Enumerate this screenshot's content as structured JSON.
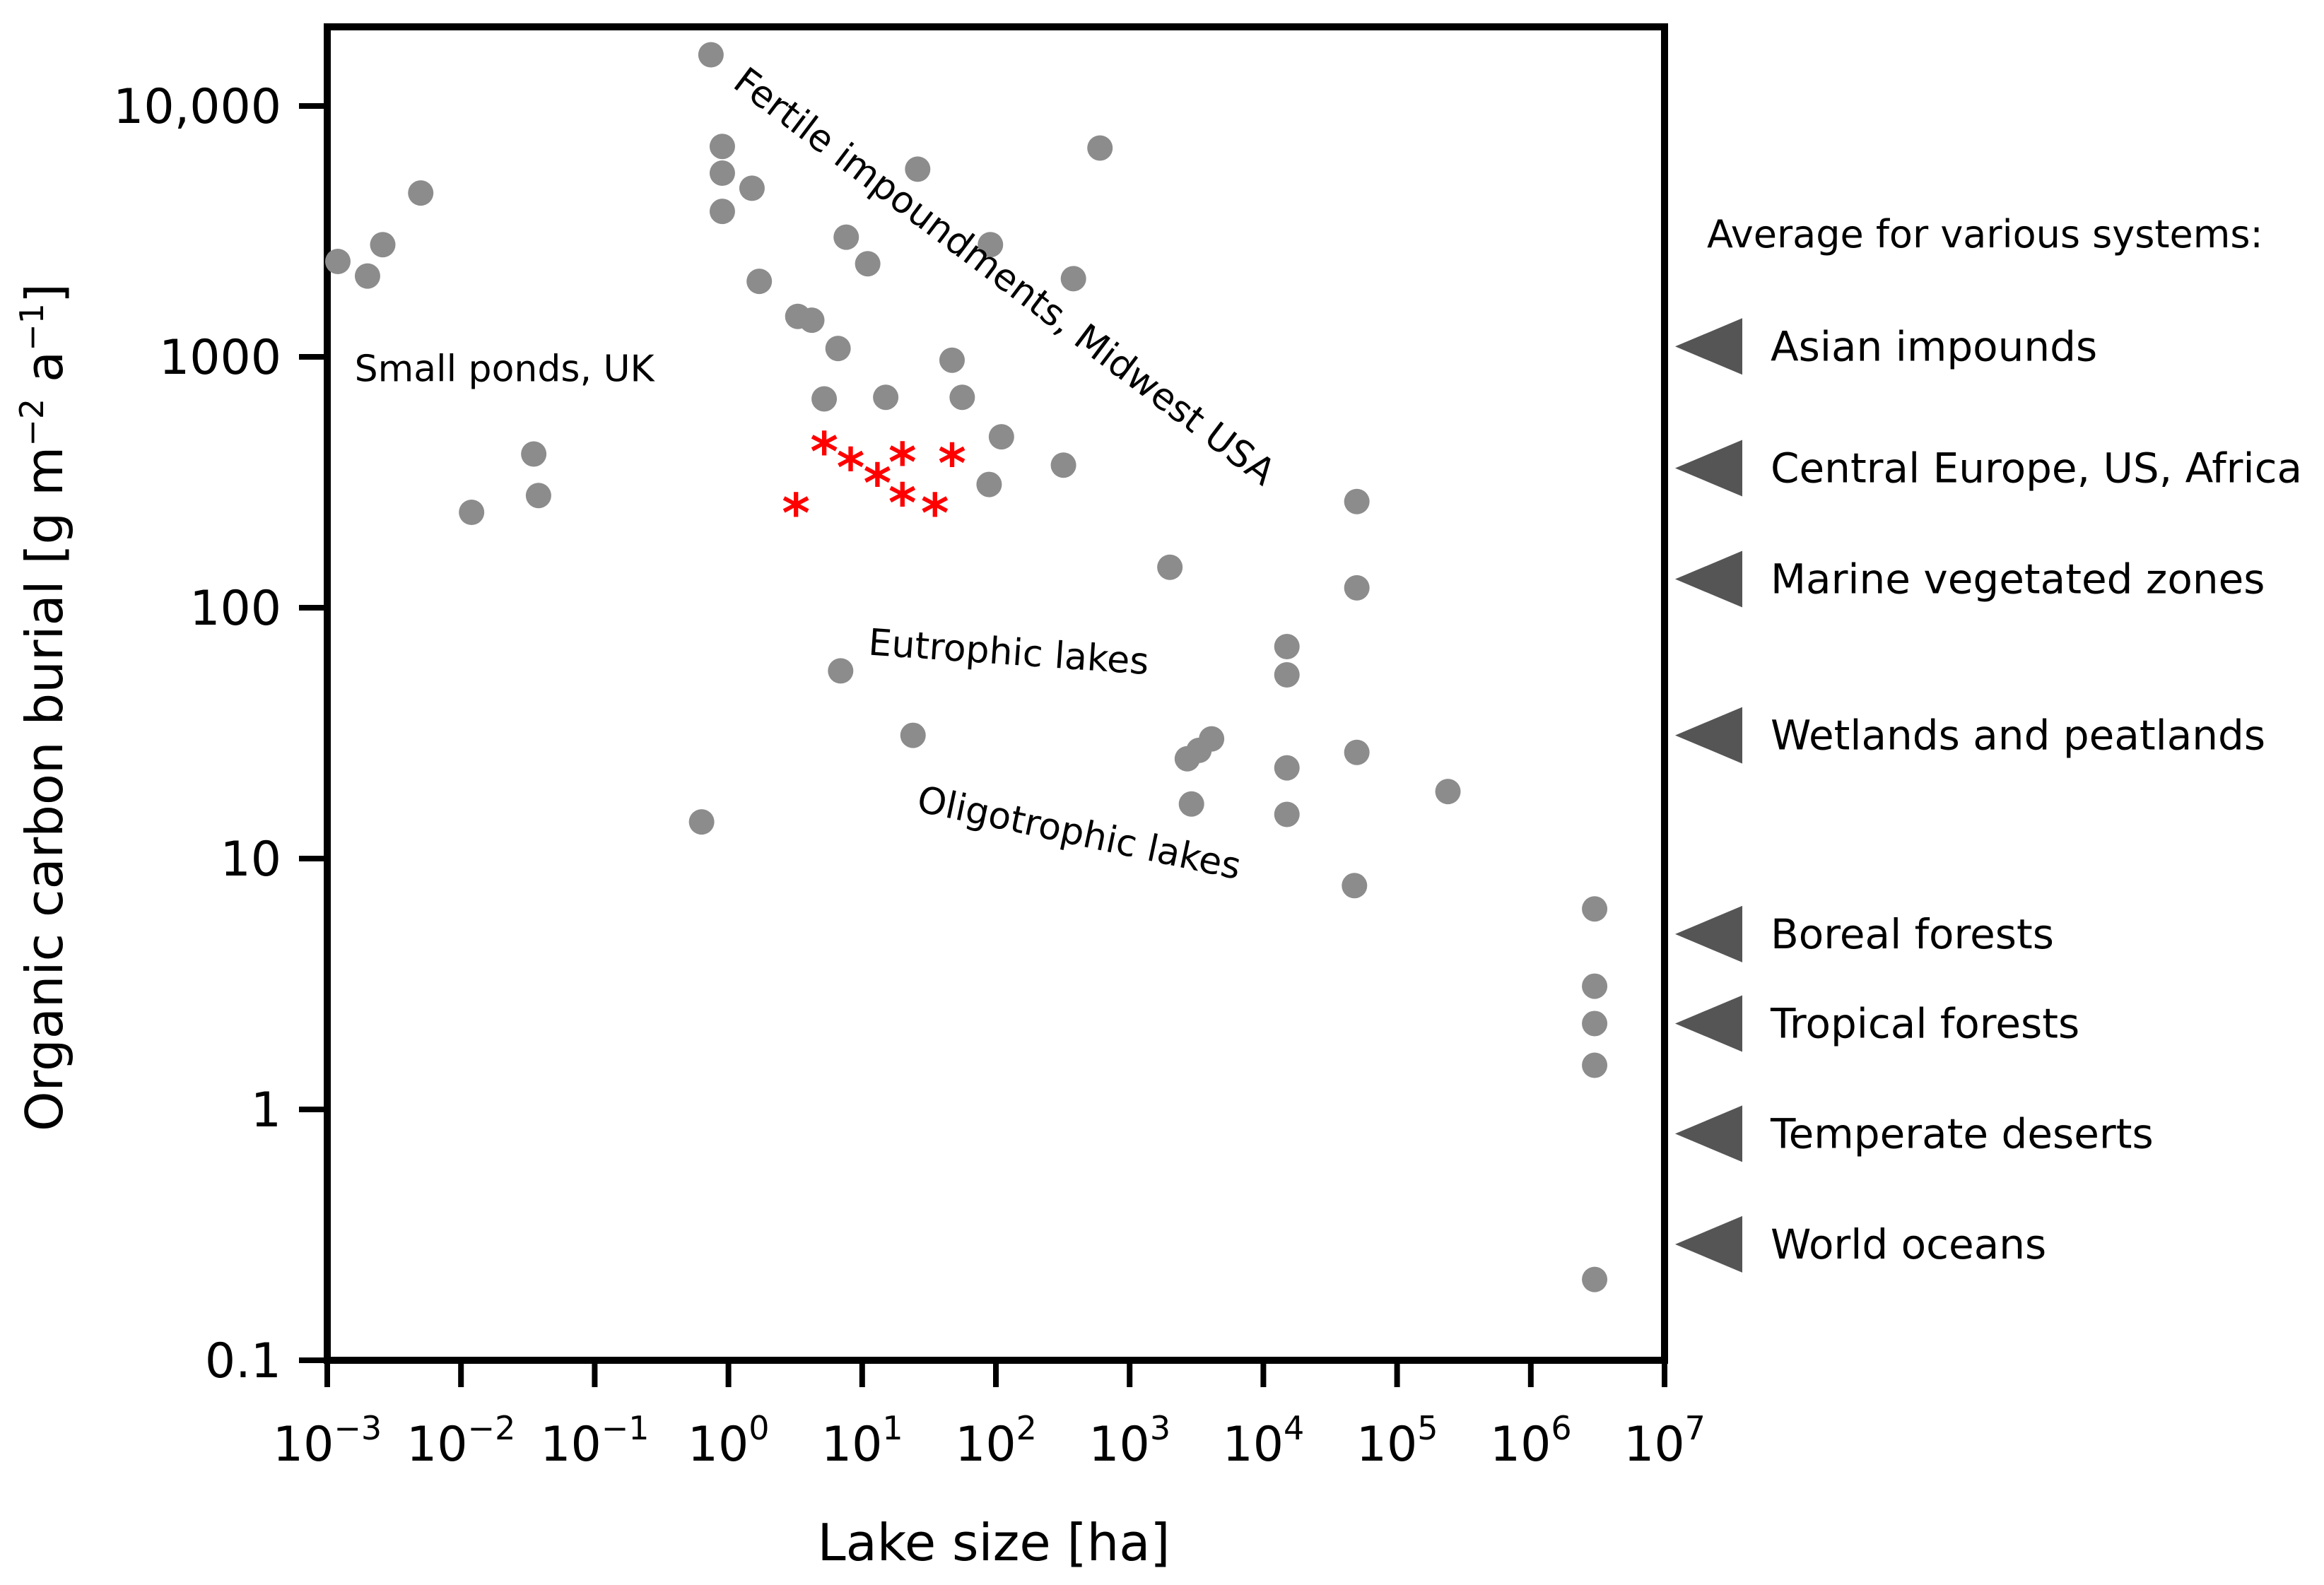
{
  "chart_data": {
    "type": "scatter",
    "xlabel": "Lake size [ha]",
    "ylabel": "Organic carbon burial [g m",
    "ylabel_sup1": "−2",
    "ylabel_mid": " a",
    "ylabel_sup2": "−1",
    "ylabel_end": "]",
    "xscale": "log",
    "yscale": "log",
    "xlim": [
      0.001,
      10000000
    ],
    "ylim": [
      0.1,
      30000
    ],
    "grid": false,
    "x_ticks": [
      {
        "base": "10",
        "exp": "−3",
        "value": 0.001
      },
      {
        "base": "10",
        "exp": "−2",
        "value": 0.01
      },
      {
        "base": "10",
        "exp": "−1",
        "value": 0.1
      },
      {
        "base": "10",
        "exp": "0",
        "value": 1
      },
      {
        "base": "10",
        "exp": "1",
        "value": 10
      },
      {
        "base": "10",
        "exp": "2",
        "value": 100
      },
      {
        "base": "10",
        "exp": "3",
        "value": 1000
      },
      {
        "base": "10",
        "exp": "4",
        "value": 10000
      },
      {
        "base": "10",
        "exp": "5",
        "value": 100000
      },
      {
        "base": "10",
        "exp": "6",
        "value": 1000000
      },
      {
        "base": "10",
        "exp": "7",
        "value": 10000000
      }
    ],
    "y_ticks": [
      {
        "label": "0.1",
        "value": 0.1
      },
      {
        "label": "1",
        "value": 1
      },
      {
        "label": "10",
        "value": 10
      },
      {
        "label": "100",
        "value": 100
      },
      {
        "label": "1000",
        "value": 1000
      },
      {
        "label": "10,000",
        "value": 10000
      }
    ],
    "point_color": "#8c8c8c",
    "star_color": "#ff0000",
    "ref_color": "#555555",
    "series": [
      {
        "marker": "circle",
        "points": [
          {
            "x": 0.0012,
            "y": 2400
          },
          {
            "x": 0.002,
            "y": 2100
          },
          {
            "x": 0.0026,
            "y": 2800
          },
          {
            "x": 0.005,
            "y": 4500
          },
          {
            "x": 0.012,
            "y": 240
          },
          {
            "x": 0.035,
            "y": 410
          },
          {
            "x": 0.038,
            "y": 280
          },
          {
            "x": 0.63,
            "y": 14
          },
          {
            "x": 0.74,
            "y": 16000
          },
          {
            "x": 0.9,
            "y": 6900
          },
          {
            "x": 0.9,
            "y": 5400
          },
          {
            "x": 0.9,
            "y": 3800
          },
          {
            "x": 1.5,
            "y": 4700
          },
          {
            "x": 1.7,
            "y": 2000
          },
          {
            "x": 3.3,
            "y": 1450
          },
          {
            "x": 4.2,
            "y": 1400
          },
          {
            "x": 5.2,
            "y": 680
          },
          {
            "x": 6.6,
            "y": 1080
          },
          {
            "x": 6.9,
            "y": 56
          },
          {
            "x": 7.6,
            "y": 3000
          },
          {
            "x": 11,
            "y": 2350
          },
          {
            "x": 15,
            "y": 690
          },
          {
            "x": 24,
            "y": 31
          },
          {
            "x": 26,
            "y": 5600
          },
          {
            "x": 47,
            "y": 970
          },
          {
            "x": 56,
            "y": 690
          },
          {
            "x": 89,
            "y": 310
          },
          {
            "x": 91,
            "y": 2800
          },
          {
            "x": 110,
            "y": 480
          },
          {
            "x": 320,
            "y": 370
          },
          {
            "x": 380,
            "y": 2050
          },
          {
            "x": 600,
            "y": 6800
          },
          {
            "x": 2000,
            "y": 145
          },
          {
            "x": 2700,
            "y": 25
          },
          {
            "x": 2900,
            "y": 16.5
          },
          {
            "x": 3300,
            "y": 27
          },
          {
            "x": 4100,
            "y": 30
          },
          {
            "x": 15000,
            "y": 70
          },
          {
            "x": 15000,
            "y": 54
          },
          {
            "x": 15000,
            "y": 23
          },
          {
            "x": 15000,
            "y": 15
          },
          {
            "x": 50000,
            "y": 265
          },
          {
            "x": 50000,
            "y": 120
          },
          {
            "x": 50000,
            "y": 26.5
          },
          {
            "x": 48000,
            "y": 7.8
          },
          {
            "x": 240000,
            "y": 18.5
          },
          {
            "x": 3000000,
            "y": 6.3
          },
          {
            "x": 3000000,
            "y": 3.1
          },
          {
            "x": 3000000,
            "y": 2.2
          },
          {
            "x": 3000000,
            "y": 1.5
          },
          {
            "x": 3000000,
            "y": 0.21
          }
        ]
      },
      {
        "marker": "asterisk",
        "points": [
          {
            "x": 3.2,
            "y": 250
          },
          {
            "x": 5.2,
            "y": 440
          },
          {
            "x": 8.2,
            "y": 380
          },
          {
            "x": 13,
            "y": 330
          },
          {
            "x": 20,
            "y": 400
          },
          {
            "x": 20,
            "y": 275
          },
          {
            "x": 35,
            "y": 250
          },
          {
            "x": 47,
            "y": 395
          }
        ]
      }
    ],
    "annotations": [
      {
        "text": "Small ponds, UK",
        "x": 0.0016,
        "y": 800,
        "rotate": 0
      },
      {
        "text": "Fertile impoundments, Midwest USA",
        "x": 1.05,
        "y": 12000,
        "rotate": 37
      },
      {
        "text": "Eutrophic lakes",
        "x": 11,
        "y": 65,
        "rotate": 4
      },
      {
        "text": "Oligotrophic lakes",
        "x": 25,
        "y": 15.5,
        "rotate": 12
      }
    ],
    "reference_heading": "Average for various systems:",
    "reference_markers": [
      {
        "label": "Asian impounds",
        "y": 1100
      },
      {
        "label": "Central Europe, US, Africa",
        "y": 360
      },
      {
        "label": "Marine vegetated zones",
        "y": 130
      },
      {
        "label": "Wetlands and peatlands",
        "y": 31
      },
      {
        "label": "Boreal forests",
        "y": 5
      },
      {
        "label": "Tropical forests",
        "y": 2.2
      },
      {
        "label": "Temperate deserts",
        "y": 0.8
      },
      {
        "label": "World oceans",
        "y": 0.29
      }
    ]
  }
}
